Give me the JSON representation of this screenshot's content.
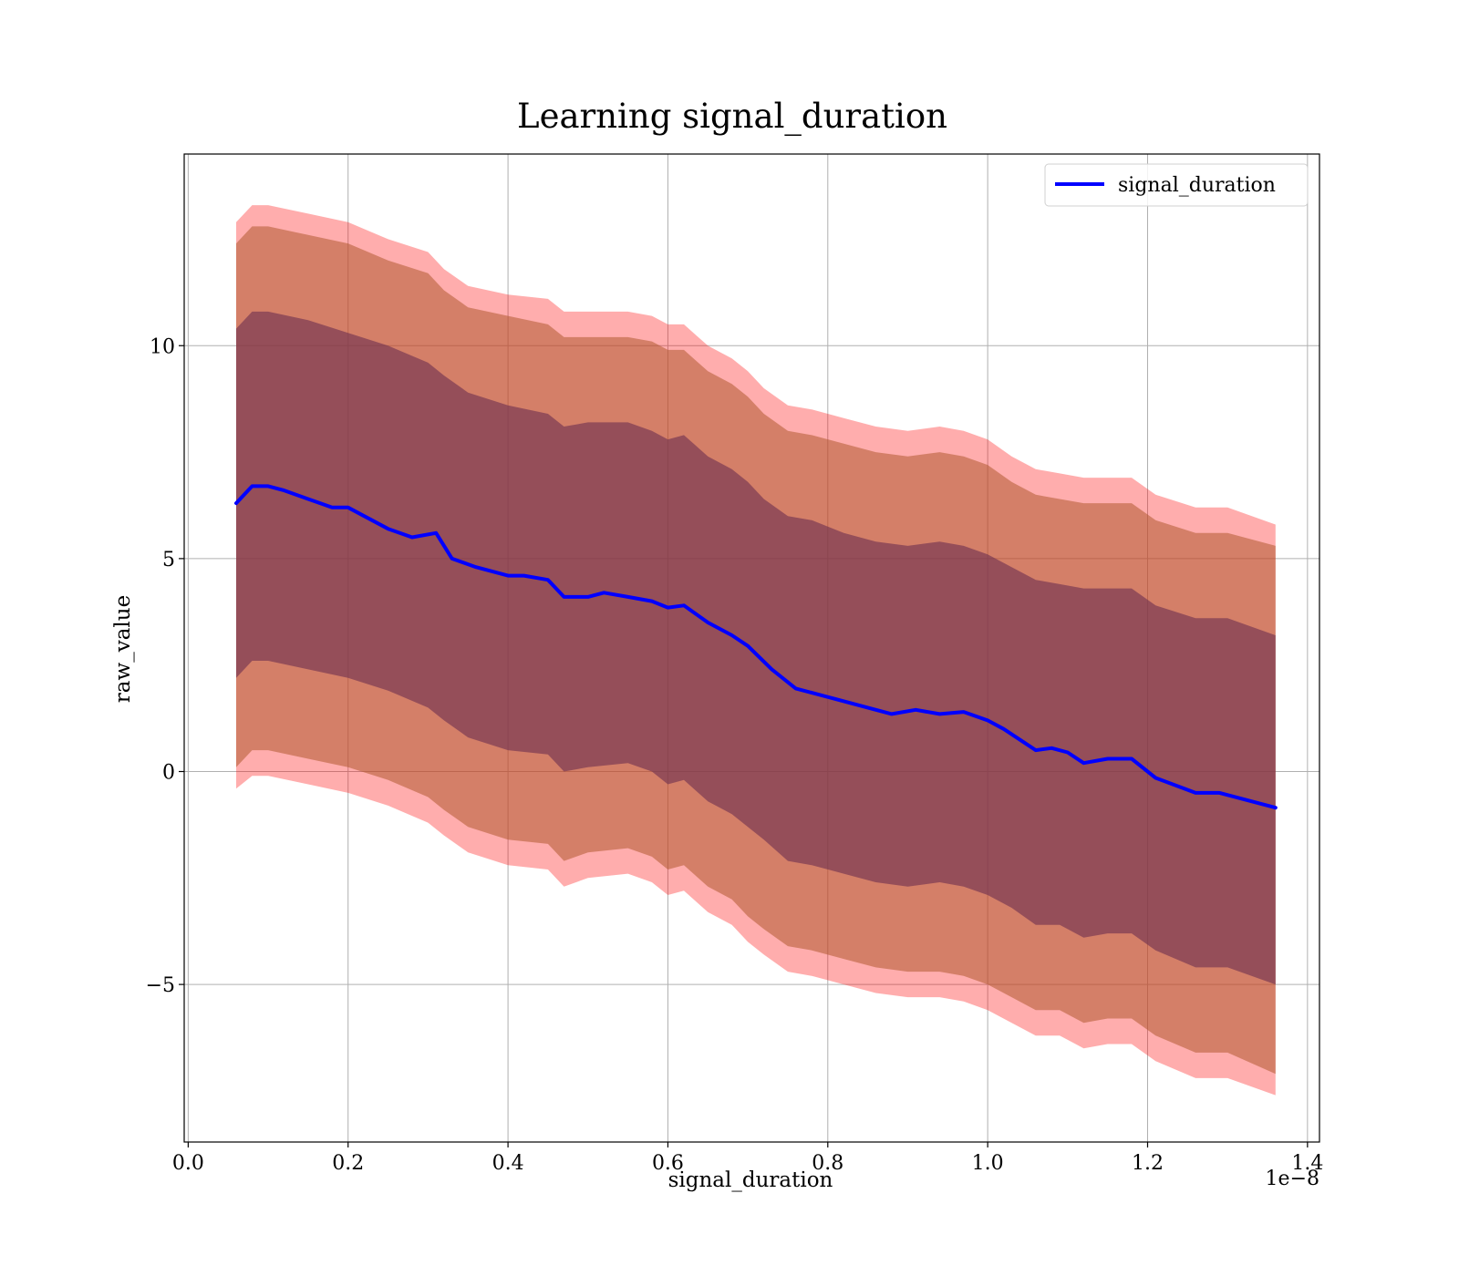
{
  "chart_data": {
    "type": "line",
    "title": "Learning signal_duration",
    "xlabel": "signal_duration",
    "ylabel": "raw_value",
    "x_offset_label": "1e−8",
    "x_scale": 1e-08,
    "xlim": [
      -0.005,
      1.415
    ],
    "ylim": [
      -8.7,
      14.5
    ],
    "grid": true,
    "legend_position": "top-right",
    "x_ticks": [
      0.0,
      0.2,
      0.4,
      0.6,
      0.8,
      1.0,
      1.2,
      1.4
    ],
    "x_tick_labels": [
      "0.0",
      "0.2",
      "0.4",
      "0.6",
      "0.8",
      "1.0",
      "1.2",
      "1.4"
    ],
    "y_ticks": [
      -5,
      0,
      5,
      10
    ],
    "y_tick_labels": [
      "−5",
      "0",
      "5",
      "10"
    ],
    "colors": {
      "line": "#0000ff",
      "band_outer": "#ff0000",
      "band_middle": "#b05a30",
      "band_inner": "#6e3050"
    },
    "series": [
      {
        "name": "signal_duration",
        "x": [
          0.06,
          0.08,
          0.1,
          0.12,
          0.15,
          0.18,
          0.2,
          0.22,
          0.25,
          0.28,
          0.31,
          0.33,
          0.36,
          0.4,
          0.42,
          0.45,
          0.47,
          0.5,
          0.52,
          0.55,
          0.58,
          0.6,
          0.62,
          0.65,
          0.68,
          0.7,
          0.73,
          0.76,
          0.78,
          0.81,
          0.85,
          0.88,
          0.91,
          0.94,
          0.97,
          1.0,
          1.02,
          1.06,
          1.08,
          1.1,
          1.12,
          1.15,
          1.18,
          1.21,
          1.26,
          1.29,
          1.36
        ],
        "y": [
          6.3,
          6.7,
          6.7,
          6.6,
          6.4,
          6.2,
          6.2,
          6.0,
          5.7,
          5.5,
          5.6,
          5.0,
          4.8,
          4.6,
          4.6,
          4.5,
          4.1,
          4.1,
          4.2,
          4.1,
          4.0,
          3.85,
          3.9,
          3.5,
          3.2,
          2.95,
          2.4,
          1.95,
          1.85,
          1.7,
          1.5,
          1.35,
          1.45,
          1.35,
          1.4,
          1.2,
          1.0,
          0.5,
          0.55,
          0.45,
          0.2,
          0.3,
          0.3,
          -0.15,
          -0.5,
          -0.5,
          -0.85
        ]
      }
    ],
    "bands": [
      {
        "role": "outer",
        "x": [
          0.06,
          0.08,
          0.1,
          0.15,
          0.2,
          0.25,
          0.3,
          0.32,
          0.35,
          0.4,
          0.45,
          0.47,
          0.5,
          0.55,
          0.58,
          0.6,
          0.62,
          0.65,
          0.68,
          0.7,
          0.72,
          0.75,
          0.78,
          0.82,
          0.86,
          0.9,
          0.94,
          0.97,
          1.0,
          1.03,
          1.06,
          1.09,
          1.12,
          1.15,
          1.18,
          1.21,
          1.26,
          1.3,
          1.36
        ],
        "lower": [
          -0.4,
          -0.1,
          -0.1,
          -0.3,
          -0.5,
          -0.8,
          -1.2,
          -1.5,
          -1.9,
          -2.2,
          -2.3,
          -2.7,
          -2.5,
          -2.4,
          -2.6,
          -2.9,
          -2.8,
          -3.3,
          -3.6,
          -4.0,
          -4.3,
          -4.7,
          -4.8,
          -5.0,
          -5.2,
          -5.3,
          -5.3,
          -5.4,
          -5.6,
          -5.9,
          -6.2,
          -6.2,
          -6.5,
          -6.4,
          -6.4,
          -6.8,
          -7.2,
          -7.2,
          -7.6
        ],
        "upper": [
          12.9,
          13.3,
          13.3,
          13.1,
          12.9,
          12.5,
          12.2,
          11.8,
          11.4,
          11.2,
          11.1,
          10.8,
          10.8,
          10.8,
          10.7,
          10.5,
          10.5,
          10.0,
          9.7,
          9.4,
          9.0,
          8.6,
          8.5,
          8.3,
          8.1,
          8.0,
          8.1,
          8.0,
          7.8,
          7.4,
          7.1,
          7.0,
          6.9,
          6.9,
          6.9,
          6.5,
          6.2,
          6.2,
          5.8
        ]
      },
      {
        "role": "middle",
        "x": [
          0.06,
          0.08,
          0.1,
          0.15,
          0.2,
          0.25,
          0.3,
          0.32,
          0.35,
          0.4,
          0.45,
          0.47,
          0.5,
          0.55,
          0.58,
          0.6,
          0.62,
          0.65,
          0.68,
          0.7,
          0.72,
          0.75,
          0.78,
          0.82,
          0.86,
          0.9,
          0.94,
          0.97,
          1.0,
          1.03,
          1.06,
          1.09,
          1.12,
          1.15,
          1.18,
          1.21,
          1.26,
          1.3,
          1.36
        ],
        "lower": [
          0.1,
          0.5,
          0.5,
          0.3,
          0.1,
          -0.2,
          -0.6,
          -0.9,
          -1.3,
          -1.6,
          -1.7,
          -2.1,
          -1.9,
          -1.8,
          -2.0,
          -2.3,
          -2.2,
          -2.7,
          -3.0,
          -3.4,
          -3.7,
          -4.1,
          -4.2,
          -4.4,
          -4.6,
          -4.7,
          -4.7,
          -4.8,
          -5.0,
          -5.3,
          -5.6,
          -5.6,
          -5.9,
          -5.8,
          -5.8,
          -6.2,
          -6.6,
          -6.6,
          -7.1
        ],
        "upper": [
          12.4,
          12.8,
          12.8,
          12.6,
          12.4,
          12.0,
          11.7,
          11.3,
          10.9,
          10.7,
          10.5,
          10.2,
          10.2,
          10.2,
          10.1,
          9.9,
          9.9,
          9.4,
          9.1,
          8.8,
          8.4,
          8.0,
          7.9,
          7.7,
          7.5,
          7.4,
          7.5,
          7.4,
          7.2,
          6.8,
          6.5,
          6.4,
          6.3,
          6.3,
          6.3,
          5.9,
          5.6,
          5.6,
          5.3
        ]
      },
      {
        "role": "inner",
        "x": [
          0.06,
          0.08,
          0.1,
          0.15,
          0.2,
          0.25,
          0.3,
          0.32,
          0.35,
          0.4,
          0.45,
          0.47,
          0.5,
          0.55,
          0.58,
          0.6,
          0.62,
          0.65,
          0.68,
          0.7,
          0.72,
          0.75,
          0.78,
          0.82,
          0.86,
          0.9,
          0.94,
          0.97,
          1.0,
          1.03,
          1.06,
          1.09,
          1.12,
          1.15,
          1.18,
          1.21,
          1.26,
          1.3,
          1.36
        ],
        "lower": [
          2.2,
          2.6,
          2.6,
          2.4,
          2.2,
          1.9,
          1.5,
          1.2,
          0.8,
          0.5,
          0.4,
          0.0,
          0.1,
          0.2,
          0.0,
          -0.3,
          -0.2,
          -0.7,
          -1.0,
          -1.3,
          -1.6,
          -2.1,
          -2.2,
          -2.4,
          -2.6,
          -2.7,
          -2.6,
          -2.7,
          -2.9,
          -3.2,
          -3.6,
          -3.6,
          -3.9,
          -3.8,
          -3.8,
          -4.2,
          -4.6,
          -4.6,
          -5.0
        ],
        "upper": [
          10.4,
          10.8,
          10.8,
          10.6,
          10.3,
          10.0,
          9.6,
          9.3,
          8.9,
          8.6,
          8.4,
          8.1,
          8.2,
          8.2,
          8.0,
          7.8,
          7.9,
          7.4,
          7.1,
          6.8,
          6.4,
          6.0,
          5.9,
          5.6,
          5.4,
          5.3,
          5.4,
          5.3,
          5.1,
          4.8,
          4.5,
          4.4,
          4.3,
          4.3,
          4.3,
          3.9,
          3.6,
          3.6,
          3.2
        ]
      }
    ]
  }
}
